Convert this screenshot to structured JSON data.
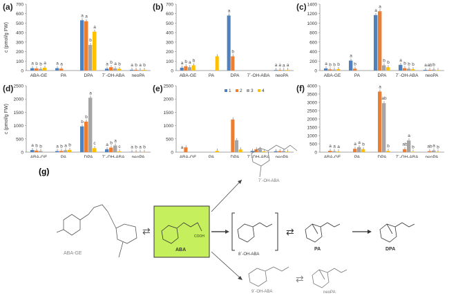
{
  "y_axis_label": "c (pmol/g FW)",
  "legend": [
    "1",
    "2",
    "3",
    "4"
  ],
  "colors": [
    "#4f81bd",
    "#ed7d31",
    "#a5a5a5",
    "#ffc000"
  ],
  "chart_data": [
    {
      "panel": "(a)",
      "type": "bar",
      "categories": [
        "ABA-GE",
        "PA",
        "DPA",
        "7´-OH-ABA",
        "neoPA"
      ],
      "yticks": [
        0,
        100,
        200,
        300,
        400,
        500,
        600,
        700
      ],
      "ylim": [
        0,
        700
      ],
      "series": [
        {
          "name": "1",
          "values": [
            25,
            25,
            530,
            20,
            8
          ]
        },
        {
          "name": "2",
          "values": [
            22,
            20,
            520,
            35,
            8
          ]
        },
        {
          "name": "3",
          "values": [
            18,
            0,
            270,
            22,
            6
          ]
        },
        {
          "name": "4",
          "values": [
            30,
            0,
            410,
            18,
            7
          ]
        }
      ],
      "letters": [
        [
          "a",
          "b",
          "b",
          "a"
        ],
        [
          "a",
          "a",
          "",
          ""
        ],
        [
          "a",
          "a",
          "b",
          "a"
        ],
        [
          "a",
          "b",
          "a",
          "b"
        ],
        [
          "a",
          "b",
          "a",
          "b"
        ]
      ]
    },
    {
      "panel": "(b)",
      "type": "bar",
      "categories": [
        "ABA-GE",
        "PA",
        "DPA",
        "7´-OH-ABA",
        "neoPA"
      ],
      "yticks": [
        0,
        100,
        200,
        300,
        400,
        500,
        600,
        700
      ],
      "ylim": [
        0,
        700
      ],
      "series": [
        {
          "name": "1",
          "values": [
            30,
            0,
            580,
            0,
            6
          ]
        },
        {
          "name": "2",
          "values": [
            45,
            0,
            150,
            0,
            6
          ]
        },
        {
          "name": "3",
          "values": [
            35,
            0,
            0,
            0,
            5
          ]
        },
        {
          "name": "4",
          "values": [
            55,
            150,
            0,
            0,
            6
          ]
        }
      ],
      "letters": [
        [
          "a",
          "b",
          "a",
          "b"
        ],
        [
          "",
          "",
          "",
          ""
        ],
        [
          "a",
          "b",
          "",
          ""
        ],
        [
          "",
          "",
          "",
          ""
        ],
        [
          "a",
          "a",
          "a",
          "a"
        ]
      ]
    },
    {
      "panel": "(c)",
      "type": "bar",
      "categories": [
        "ABA-GE",
        "PA",
        "DPA",
        "7´-OH-ABA",
        "neoPA"
      ],
      "yticks": [
        0,
        200,
        400,
        600,
        800,
        1000,
        1200,
        1400
      ],
      "ylim": [
        0,
        1400
      ],
      "series": [
        {
          "name": "1",
          "values": [
            45,
            210,
            1170,
            120,
            15
          ]
        },
        {
          "name": "2",
          "values": [
            25,
            40,
            1250,
            50,
            15
          ]
        },
        {
          "name": "3",
          "values": [
            20,
            0,
            110,
            40,
            20
          ]
        },
        {
          "name": "4",
          "values": [
            30,
            0,
            70,
            30,
            10
          ]
        }
      ],
      "letters": [
        [
          "a",
          "b",
          "b",
          "b"
        ],
        [
          "a",
          "b",
          "",
          ""
        ],
        [
          "a",
          "a",
          "b",
          "b"
        ],
        [
          "a",
          "b",
          "b",
          "b"
        ],
        [
          "a",
          "ab",
          "b",
          ""
        ]
      ]
    },
    {
      "panel": "(d)",
      "type": "bar",
      "categories": [
        "ABA-GE",
        "PA",
        "DPA",
        "7´-OH-ABA",
        "neoPA"
      ],
      "yticks": [
        0,
        500,
        1000,
        1500,
        2000,
        2500
      ],
      "ylim": [
        0,
        2500
      ],
      "series": [
        {
          "name": "1",
          "values": [
            80,
            40,
            970,
            110,
            10
          ]
        },
        {
          "name": "2",
          "values": [
            60,
            45,
            1150,
            170,
            10
          ]
        },
        {
          "name": "3",
          "values": [
            45,
            70,
            2050,
            250,
            10
          ]
        },
        {
          "name": "4",
          "values": [
            0,
            85,
            150,
            30,
            8
          ]
        }
      ],
      "letters": [
        [
          "a",
          "b",
          "b",
          ""
        ],
        [
          "a",
          "b",
          "a",
          "b"
        ],
        [
          "b",
          "b",
          "a",
          "c"
        ],
        [
          "a",
          "b",
          "a",
          "c"
        ],
        [
          "a",
          "b",
          "a",
          "b"
        ]
      ]
    },
    {
      "panel": "(e)",
      "type": "bar",
      "categories": [
        "ABA-GE",
        "PA",
        "DPA",
        "7´-OH-ABA",
        "neoPA"
      ],
      "yticks": [
        0,
        500,
        1000,
        1500,
        2000,
        2500
      ],
      "ylim": [
        0,
        2500
      ],
      "series": [
        {
          "name": "1",
          "values": [
            0,
            0,
            0,
            45,
            35
          ]
        },
        {
          "name": "2",
          "values": [
            180,
            0,
            1230,
            110,
            40
          ]
        },
        {
          "name": "3",
          "values": [
            0,
            0,
            450,
            120,
            45
          ]
        },
        {
          "name": "4",
          "values": [
            0,
            50,
            100,
            30,
            20
          ]
        }
      ],
      "letters": [
        [
          "a",
          "",
          "",
          ""
        ],
        [
          "",
          "",
          "",
          ""
        ],
        [
          "",
          "",
          "",
          ""
        ],
        [
          "",
          "",
          "",
          ""
        ],
        [
          "",
          "",
          "",
          ""
        ]
      ]
    },
    {
      "panel": "(f)",
      "type": "bar",
      "categories": [
        "ABA-GE",
        "PA",
        "DPA",
        "7´-OH-ABA",
        "neoPA"
      ],
      "yticks": [
        0,
        500,
        1000,
        1500,
        2000,
        2500,
        3000,
        3500,
        4000
      ],
      "ylim": [
        0,
        4000
      ],
      "series": [
        {
          "name": "1",
          "values": [
            0,
            0,
            0,
            0,
            0
          ]
        },
        {
          "name": "2",
          "values": [
            80,
            200,
            3650,
            180,
            60
          ]
        },
        {
          "name": "3",
          "values": [
            60,
            300,
            2950,
            700,
            100
          ]
        },
        {
          "name": "4",
          "values": [
            40,
            180,
            80,
            30,
            30
          ]
        }
      ],
      "letters": [
        [
          "",
          "a",
          "a",
          "a"
        ],
        [
          "",
          "a",
          "a",
          "b"
        ],
        [
          "",
          "a",
          "ab",
          "b"
        ],
        [
          "",
          "ab",
          "a",
          "b"
        ],
        [
          "",
          "ab",
          "a",
          "b"
        ]
      ]
    }
  ],
  "scheme": {
    "panel_label": "(g)",
    "compounds": {
      "aba_ge": "ABA-GE",
      "aba": "ABA",
      "oh7": "7´-OH-ABA",
      "oh8": "8´-OH-ABA",
      "oh9": "9´-OH-ABA",
      "pa": "PA",
      "dpa": "DPA",
      "neopa": "neoPA"
    },
    "highlight_color": "#c6ef5e"
  }
}
